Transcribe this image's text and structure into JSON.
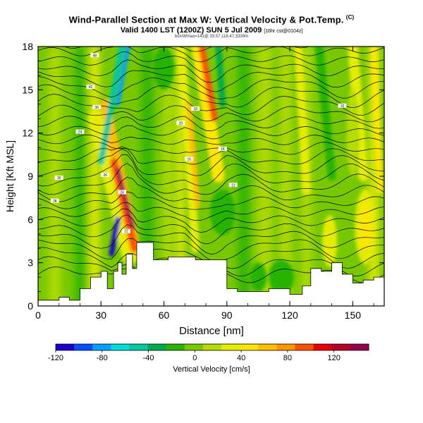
{
  "chart_data": {
    "type": "heatmap",
    "title": "Wind-Parallel Section at Max W: Vertical Velocity & Pot.Temp.",
    "title_mark": "(C)",
    "subtitle": "Valid 1400 LST (1200Z) SUN 5 Jul 2009",
    "subtitle_suffix": "[16hr cst@0104z]",
    "subtitle2": "box/Wmax=141@ 33.57,118.47,3339m",
    "xlabel": "Distance [nm]",
    "ylabel": "Height [Kft MSL]",
    "xlim": [
      0,
      165
    ],
    "ylim": [
      0,
      18
    ],
    "x_ticks": [
      "0",
      "30",
      "60",
      "90",
      "120",
      "150"
    ],
    "y_ticks": [
      "0",
      "3",
      "6",
      "9",
      "12",
      "15",
      "18"
    ],
    "colorbar": {
      "label": "Vertical Velocity [cm/s]",
      "range": [
        -120,
        150
      ],
      "tick_labels": [
        "-120",
        "-80",
        "-40",
        "0",
        "40",
        "80",
        "120"
      ],
      "colors": [
        "#1a00c8",
        "#0050ff",
        "#00a0ff",
        "#00dcdc",
        "#00c8a0",
        "#00aa50",
        "#28b400",
        "#78c800",
        "#b4dc00",
        "#e6ec00",
        "#ffe600",
        "#ffbe00",
        "#ff9600",
        "#ff5000",
        "#e60000",
        "#b40028",
        "#96004b"
      ]
    },
    "terrain_kft": [
      [
        0,
        0.4
      ],
      [
        10,
        0.4
      ],
      [
        10,
        0.6
      ],
      [
        15,
        0.6
      ],
      [
        15,
        0.4
      ],
      [
        20,
        0.4
      ],
      [
        20,
        1.2
      ],
      [
        25,
        1.2
      ],
      [
        25,
        2.0
      ],
      [
        30,
        2.0
      ],
      [
        30,
        2.4
      ],
      [
        33,
        2.4
      ],
      [
        33,
        1.2
      ],
      [
        36,
        1.2
      ],
      [
        36,
        2.4
      ],
      [
        38,
        2.4
      ],
      [
        38,
        3.0
      ],
      [
        40,
        3.0
      ],
      [
        40,
        2.2
      ],
      [
        42,
        2.2
      ],
      [
        42,
        3.6
      ],
      [
        45,
        3.6
      ],
      [
        45,
        2.6
      ],
      [
        47,
        2.6
      ],
      [
        47,
        4.4
      ],
      [
        55,
        4.4
      ],
      [
        55,
        3.2
      ],
      [
        62,
        3.2
      ],
      [
        62,
        3.4
      ],
      [
        75,
        3.4
      ],
      [
        75,
        3.2
      ],
      [
        90,
        3.2
      ],
      [
        90,
        1.2
      ],
      [
        95,
        1.2
      ],
      [
        95,
        1.0
      ],
      [
        110,
        1.0
      ],
      [
        110,
        1.2
      ],
      [
        120,
        1.2
      ],
      [
        120,
        0.8
      ],
      [
        126,
        0.8
      ],
      [
        126,
        1.4
      ],
      [
        130,
        1.4
      ],
      [
        130,
        2.6
      ],
      [
        135,
        2.6
      ],
      [
        135,
        2.4
      ],
      [
        140,
        2.4
      ],
      [
        140,
        3.0
      ],
      [
        145,
        3.0
      ],
      [
        145,
        2.2
      ],
      [
        150,
        2.2
      ],
      [
        150,
        1.6
      ],
      [
        155,
        1.6
      ],
      [
        155,
        1.8
      ],
      [
        160,
        1.8
      ],
      [
        160,
        2.0
      ],
      [
        165,
        2.0
      ]
    ],
    "updraft_cores": [
      {
        "x": 43,
        "y": 7.5,
        "w_cms": 140
      },
      {
        "x": 80,
        "y": 16.8,
        "w_cms": 100
      },
      {
        "x": 74,
        "y": 9.5,
        "w_cms": 50
      },
      {
        "x": 156,
        "y": 5.5,
        "w_cms": 40
      },
      {
        "x": 138,
        "y": 4.5,
        "w_cms": 40
      },
      {
        "x": 165,
        "y": 13,
        "w_cms": 50
      }
    ],
    "downdraft_cores": [
      {
        "x": 37,
        "y": 4.2,
        "w_cms": -110
      },
      {
        "x": 43,
        "y": 17.5,
        "w_cms": -60
      },
      {
        "x": 88,
        "y": 17.5,
        "w_cms": -40
      }
    ],
    "isentrope_labels": [
      "48",
      "42",
      "36",
      "24",
      "30",
      "28",
      "26",
      "24",
      "22",
      "20",
      "18",
      "16",
      "14",
      "12",
      "10"
    ]
  }
}
